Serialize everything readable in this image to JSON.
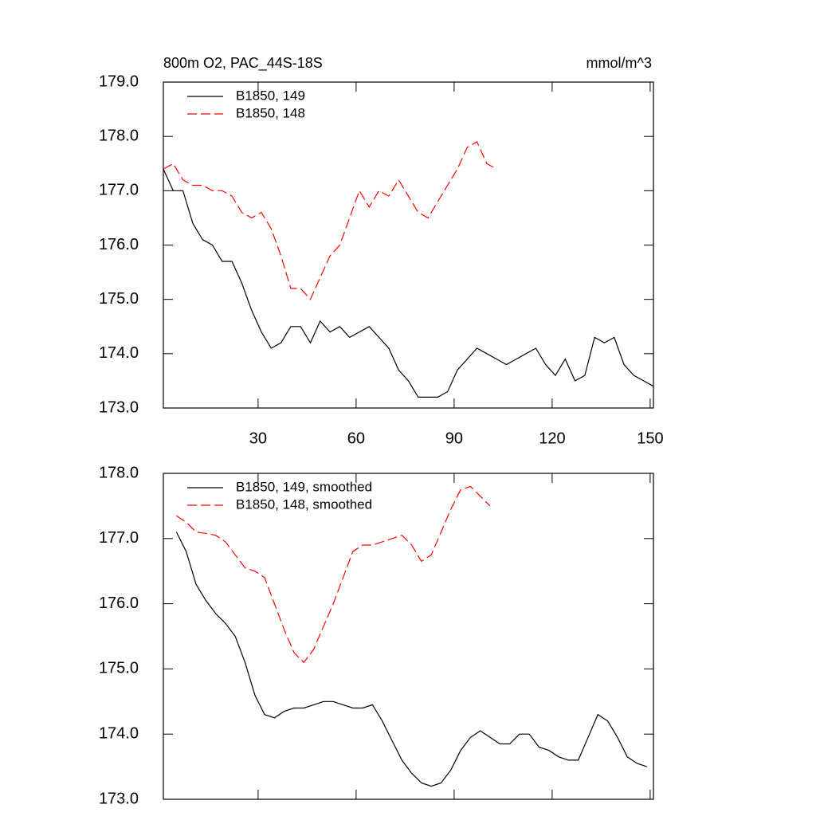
{
  "chart_data": [
    {
      "type": "line",
      "title": "800m O2, PAC_44S-18S",
      "units": "mmol/m^3",
      "x": [
        1,
        4,
        7,
        10,
        13,
        16,
        19,
        22,
        25,
        28,
        31,
        34,
        37,
        40,
        43,
        46,
        49,
        52,
        55,
        58,
        61,
        64,
        67,
        70,
        73,
        76,
        79,
        82,
        85,
        88,
        91,
        94,
        97,
        100,
        103,
        106,
        109,
        112,
        115,
        118,
        121,
        124,
        127,
        130,
        133,
        136,
        139,
        142,
        145,
        148,
        151
      ],
      "series": [
        {
          "name": "B1850, 149",
          "color": "#000000",
          "dash": false,
          "values": [
            177.4,
            177.0,
            177.0,
            176.4,
            176.1,
            176.0,
            175.7,
            175.7,
            175.3,
            174.8,
            174.4,
            174.1,
            174.2,
            174.5,
            174.5,
            174.2,
            174.6,
            174.4,
            174.5,
            174.3,
            174.4,
            174.5,
            174.3,
            174.1,
            173.7,
            173.5,
            173.2,
            173.2,
            173.2,
            173.3,
            173.7,
            173.9,
            174.1,
            174.0,
            173.9,
            173.8,
            173.9,
            174.0,
            174.1,
            173.8,
            173.6,
            173.9,
            173.5,
            173.6,
            174.3,
            174.2,
            174.3,
            173.8,
            173.6,
            173.5,
            173.4
          ]
        },
        {
          "name": "B1850, 148",
          "color": "#ff0000",
          "dash": true,
          "values": [
            177.4,
            177.5,
            177.2,
            177.1,
            177.1,
            177.0,
            177.0,
            176.9,
            176.6,
            176.5,
            176.6,
            176.3,
            175.8,
            175.2,
            175.2,
            175.0,
            175.4,
            175.8,
            176.0,
            176.5,
            177.0,
            176.7,
            177.0,
            176.9,
            177.2,
            176.9,
            176.6,
            176.5,
            176.8,
            177.1,
            177.4,
            177.8,
            177.9,
            177.5,
            177.4,
            null,
            null,
            null,
            null,
            null,
            null,
            null,
            null,
            null,
            null,
            null,
            null,
            null,
            null,
            null,
            null
          ]
        }
      ],
      "xlim": [
        1,
        151
      ],
      "xticks": [
        30,
        60,
        90,
        120,
        150
      ],
      "show_xtick_labels": true,
      "ylim": [
        173,
        179
      ],
      "yticks": [
        {
          "value": 173,
          "label": "173.0"
        },
        {
          "value": 174,
          "label": "174.0"
        },
        {
          "value": 175,
          "label": "175.0"
        },
        {
          "value": 176,
          "label": "176.0"
        },
        {
          "value": 177,
          "label": "177.0"
        },
        {
          "value": 178,
          "label": "178.0"
        },
        {
          "value": 179,
          "label": "179.0"
        }
      ]
    },
    {
      "type": "line",
      "x": [
        5,
        8,
        11,
        14,
        17,
        20,
        23,
        26,
        29,
        32,
        35,
        38,
        41,
        44,
        47,
        50,
        53,
        56,
        59,
        62,
        65,
        68,
        71,
        74,
        77,
        80,
        83,
        86,
        89,
        92,
        95,
        98,
        101,
        104,
        107,
        110,
        113,
        116,
        119,
        122,
        125,
        128,
        131,
        134,
        137,
        140,
        143,
        146,
        149
      ],
      "series": [
        {
          "name": "B1850, 149, smoothed",
          "color": "#000000",
          "dash": false,
          "values": [
            177.1,
            176.8,
            176.3,
            176.05,
            175.85,
            175.7,
            175.5,
            175.1,
            174.6,
            174.3,
            174.25,
            174.35,
            174.4,
            174.4,
            174.45,
            174.5,
            174.5,
            174.45,
            174.4,
            174.4,
            174.45,
            174.2,
            173.9,
            173.6,
            173.4,
            173.25,
            173.2,
            173.25,
            173.45,
            173.75,
            173.95,
            174.05,
            173.95,
            173.85,
            173.85,
            174.0,
            174.0,
            173.8,
            173.75,
            173.65,
            173.6,
            173.6,
            173.95,
            174.3,
            174.2,
            173.95,
            173.65,
            173.55,
            173.5
          ]
        },
        {
          "name": "B1850, 148, smoothed",
          "color": "#ff0000",
          "dash": true,
          "values": [
            177.35,
            177.25,
            177.1,
            177.08,
            177.05,
            176.95,
            176.75,
            176.55,
            176.5,
            176.4,
            176.0,
            175.6,
            175.25,
            175.1,
            175.3,
            175.65,
            176.0,
            176.4,
            176.8,
            176.9,
            176.9,
            176.95,
            177.0,
            177.05,
            176.9,
            176.65,
            176.75,
            177.1,
            177.45,
            177.75,
            177.8,
            177.65,
            177.5,
            null,
            null,
            null,
            null,
            null,
            null,
            null,
            null,
            null,
            null,
            null,
            null,
            null,
            null,
            null,
            null
          ]
        }
      ],
      "xlim": [
        1,
        151
      ],
      "xticks": [
        30,
        60,
        90,
        120,
        150
      ],
      "show_xtick_labels": false,
      "ylim": [
        173,
        178
      ],
      "yticks": [
        {
          "value": 173,
          "label": "173.0"
        },
        {
          "value": 174,
          "label": "174.0"
        },
        {
          "value": 175,
          "label": "175.0"
        },
        {
          "value": 176,
          "label": "176.0"
        },
        {
          "value": 177,
          "label": "177.0"
        },
        {
          "value": 178,
          "label": "178.0"
        }
      ]
    }
  ]
}
